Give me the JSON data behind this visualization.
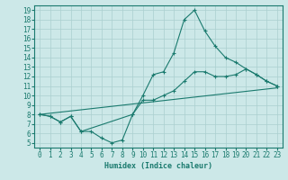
{
  "xlabel": "Humidex (Indice chaleur)",
  "background_color": "#cce8e8",
  "grid_color": "#aacfcf",
  "line_color": "#1a7a6e",
  "xlim": [
    -0.5,
    23.5
  ],
  "ylim": [
    4.5,
    19.5
  ],
  "xticks": [
    0,
    1,
    2,
    3,
    4,
    5,
    6,
    7,
    8,
    9,
    10,
    11,
    12,
    13,
    14,
    15,
    16,
    17,
    18,
    19,
    20,
    21,
    22,
    23
  ],
  "yticks": [
    5,
    6,
    7,
    8,
    9,
    10,
    11,
    12,
    13,
    14,
    15,
    16,
    17,
    18,
    19
  ],
  "line1_x": [
    0,
    1,
    2,
    3,
    4,
    5,
    6,
    7,
    8,
    9,
    10,
    11,
    12,
    13,
    14,
    15,
    16,
    17,
    18,
    19,
    20,
    21,
    22,
    23
  ],
  "line1_y": [
    8.0,
    7.8,
    7.2,
    7.8,
    6.2,
    6.2,
    5.5,
    5.0,
    5.3,
    8.0,
    10.0,
    12.2,
    12.5,
    14.5,
    18.0,
    19.0,
    16.8,
    15.2,
    14.0,
    13.5,
    12.8,
    12.2,
    11.5,
    11.0
  ],
  "line2_x": [
    0,
    1,
    2,
    3,
    4,
    9,
    10,
    11,
    12,
    13,
    14,
    15,
    16,
    17,
    18,
    19,
    20,
    21,
    22,
    23
  ],
  "line2_y": [
    8.0,
    7.8,
    7.2,
    7.8,
    6.2,
    8.0,
    9.5,
    9.5,
    10.0,
    10.5,
    11.5,
    12.5,
    12.5,
    12.0,
    12.0,
    12.2,
    12.8,
    12.2,
    11.5,
    11.0
  ],
  "line3_x": [
    0,
    23
  ],
  "line3_y": [
    8.0,
    10.8
  ]
}
